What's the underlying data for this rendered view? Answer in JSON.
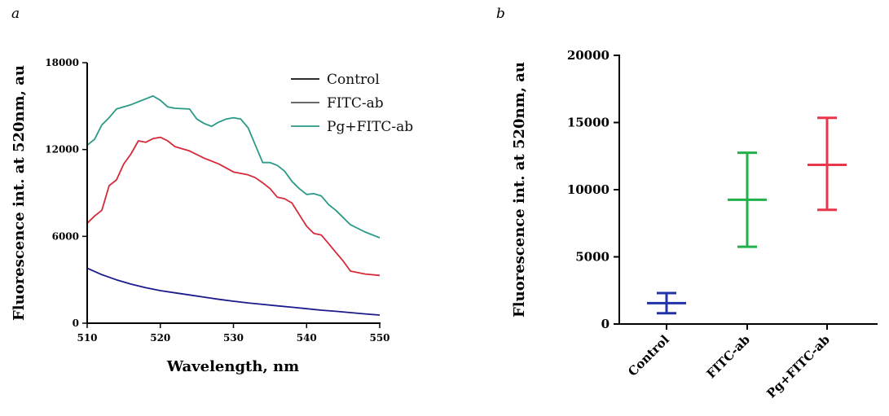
{
  "panels": {
    "a_label": "a",
    "b_label": "b"
  },
  "chart_data": [
    {
      "type": "line",
      "xlabel": "Wavelength, nm",
      "ylabel": "Fluorescence int. at 520nm, au",
      "xlim": [
        510,
        550
      ],
      "ylim": [
        0,
        18000
      ],
      "x_ticks": [
        "510",
        "520",
        "530",
        "540",
        "550"
      ],
      "y_ticks": [
        "0",
        "6000",
        "12000",
        "18000"
      ],
      "legend_position": "top-right",
      "grid": false,
      "series": [
        {
          "name": "Control",
          "color": "#1a1a8c",
          "points": [
            [
              510,
              3800
            ],
            [
              512,
              3350
            ],
            [
              514,
              3000
            ],
            [
              516,
              2700
            ],
            [
              518,
              2450
            ],
            [
              520,
              2250
            ],
            [
              522,
              2100
            ],
            [
              524,
              1950
            ],
            [
              526,
              1800
            ],
            [
              528,
              1650
            ],
            [
              530,
              1520
            ],
            [
              532,
              1400
            ],
            [
              534,
              1300
            ],
            [
              536,
              1200
            ],
            [
              538,
              1100
            ],
            [
              540,
              1000
            ],
            [
              542,
              900
            ],
            [
              544,
              820
            ],
            [
              546,
              730
            ],
            [
              548,
              640
            ],
            [
              550,
              560
            ]
          ]
        },
        {
          "name": "FITC-ab",
          "color": "#d42a3a",
          "points": [
            [
              510,
              6900
            ],
            [
              511,
              7400
            ],
            [
              512,
              7800
            ],
            [
              513,
              9500
            ],
            [
              514,
              9900
            ],
            [
              515,
              11000
            ],
            [
              516,
              11700
            ],
            [
              517,
              12600
            ],
            [
              518,
              12500
            ],
            [
              519,
              12750
            ],
            [
              520,
              12850
            ],
            [
              521,
              12600
            ],
            [
              522,
              12200
            ],
            [
              524,
              11900
            ],
            [
              526,
              11400
            ],
            [
              528,
              11000
            ],
            [
              530,
              10450
            ],
            [
              532,
              10250
            ],
            [
              533,
              10050
            ],
            [
              534,
              9700
            ],
            [
              535,
              9300
            ],
            [
              536,
              8700
            ],
            [
              537,
              8600
            ],
            [
              538,
              8300
            ],
            [
              539,
              7500
            ],
            [
              540,
              6700
            ],
            [
              541,
              6200
            ],
            [
              542,
              6100
            ],
            [
              543,
              5500
            ],
            [
              544,
              4900
            ],
            [
              545,
              4300
            ],
            [
              546,
              3600
            ],
            [
              548,
              3400
            ],
            [
              550,
              3300
            ]
          ]
        },
        {
          "name": "Pg+FITC-ab",
          "color": "#2a9a86",
          "points": [
            [
              510,
              12300
            ],
            [
              511,
              12700
            ],
            [
              512,
              13700
            ],
            [
              513,
              14200
            ],
            [
              514,
              14800
            ],
            [
              516,
              15100
            ],
            [
              518,
              15500
            ],
            [
              519,
              15700
            ],
            [
              520,
              15400
            ],
            [
              521,
              14950
            ],
            [
              522,
              14850
            ],
            [
              524,
              14800
            ],
            [
              525,
              14100
            ],
            [
              526,
              13800
            ],
            [
              527,
              13600
            ],
            [
              528,
              13900
            ],
            [
              529,
              14100
            ],
            [
              530,
              14200
            ],
            [
              531,
              14100
            ],
            [
              532,
              13500
            ],
            [
              533,
              12300
            ],
            [
              534,
              11100
            ],
            [
              535,
              11100
            ],
            [
              536,
              10900
            ],
            [
              537,
              10500
            ],
            [
              538,
              9800
            ],
            [
              539,
              9300
            ],
            [
              540,
              8900
            ],
            [
              541,
              8950
            ],
            [
              542,
              8800
            ],
            [
              543,
              8200
            ],
            [
              544,
              7800
            ],
            [
              545,
              7300
            ],
            [
              546,
              6800
            ],
            [
              548,
              6300
            ],
            [
              550,
              5900
            ]
          ]
        }
      ]
    },
    {
      "type": "scatter",
      "ylabel": "Fluorescence int. at 520nm, au",
      "ylim": [
        0,
        20000
      ],
      "y_ticks": [
        "0",
        "5000",
        "10000",
        "15000",
        "20000"
      ],
      "categories": [
        "Control",
        "FITC-ab",
        "Pg+FITC-ab"
      ],
      "series": [
        {
          "colors": [
            "#2233aa",
            "#22b04a",
            "#e8364a"
          ],
          "mean": [
            1550,
            9250,
            11850
          ],
          "upper": [
            2300,
            12750,
            15350
          ],
          "lower": [
            800,
            5750,
            8500
          ]
        }
      ]
    }
  ]
}
